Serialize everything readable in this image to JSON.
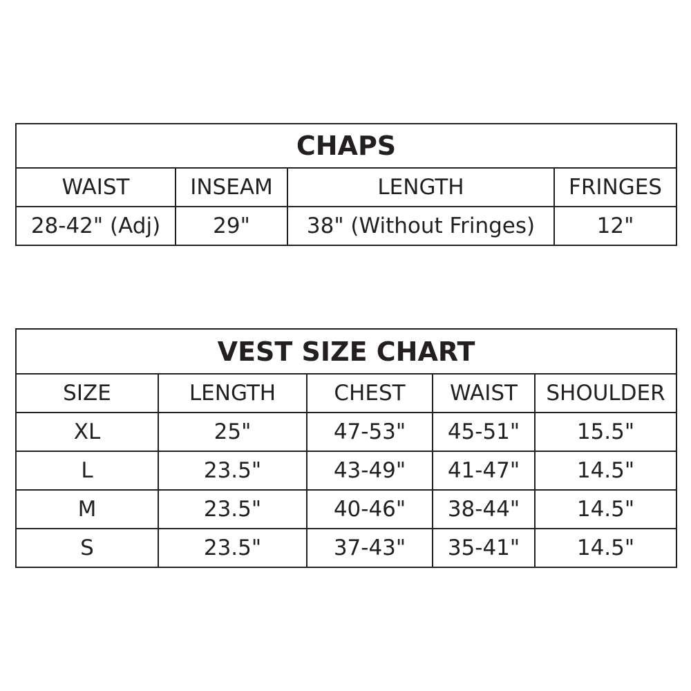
{
  "chaps": {
    "title": "CHAPS",
    "headers": [
      "WAIST",
      "INSEAM",
      "LENGTH",
      "FRINGES"
    ],
    "values": [
      "28-42\" (Adj)",
      "29\"",
      "38\" (Without Fringes)",
      "12\""
    ]
  },
  "vest": {
    "title": "VEST SIZE CHART",
    "headers": [
      "SIZE",
      "LENGTH",
      "CHEST",
      "WAIST",
      "SHOULDER"
    ],
    "rows": [
      [
        "XL",
        "25\"",
        "47-53\"",
        "45-51\"",
        "15.5\""
      ],
      [
        "L",
        "23.5\"",
        "43-49\"",
        "41-47\"",
        "14.5\""
      ],
      [
        "M",
        "23.5\"",
        "40-46\"",
        "38-44\"",
        "14.5\""
      ],
      [
        "S",
        "23.5\"",
        "37-43\"",
        "35-41\"",
        "14.5\""
      ]
    ]
  }
}
